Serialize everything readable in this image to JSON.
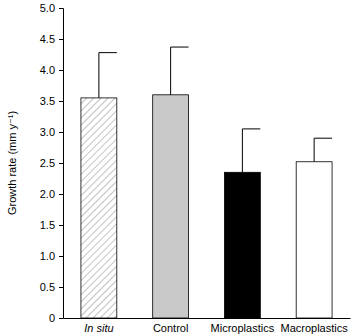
{
  "chart_data": {
    "type": "bar",
    "y_label": "Growth rate (mm y⁻¹)",
    "categories": [
      "In situ",
      "Control",
      "Microplastics",
      "Macroplastics"
    ],
    "values": [
      3.55,
      3.6,
      2.35,
      2.52
    ],
    "errors": [
      0.73,
      0.77,
      0.7,
      0.38
    ],
    "colors": [
      "#ffffff",
      "#c8c8c8",
      "#000000",
      "#ffffff"
    ],
    "ylim": [
      0,
      5
    ],
    "yticks": [
      0,
      0.5,
      {
        "value": 1,
        "label": "1.0"
      },
      1.5,
      {
        "value": 2,
        "label": "2.0"
      },
      2.5,
      {
        "value": 3,
        "label": "3.0"
      },
      3.5,
      {
        "value": 4,
        "label": "4.0"
      },
      4.5,
      {
        "value": 5,
        "label": "5.0"
      }
    ],
    "grid": false
  }
}
